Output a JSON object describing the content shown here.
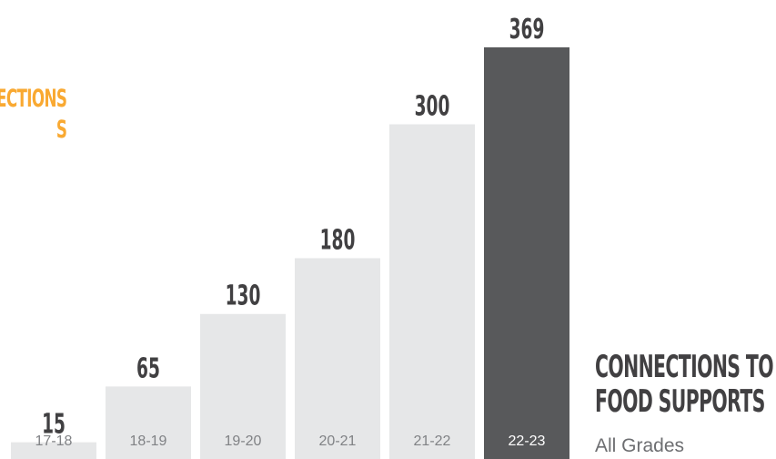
{
  "header": {
    "cut_title_line1": "ECTIONS",
    "cut_title_line2": "S"
  },
  "footer_title": {
    "line1": "CONNECTIONS TO",
    "line2": "FOOD SUPPORTS",
    "subtitle": "All Grades"
  },
  "colors": {
    "bar": "#e6e7e8",
    "bar_highlight": "#58595b",
    "value_label": "#414042",
    "category_label": "#808285",
    "category_label_highlight": "#ffffff",
    "accent": "#f9a932",
    "title": "#414042",
    "subtitle": "#6d6e71"
  },
  "chart_data": {
    "type": "bar",
    "title": "CONNECTIONS TO FOOD SUPPORTS",
    "subtitle": "All Grades",
    "categories": [
      "17-18",
      "18-19",
      "19-20",
      "20-21",
      "21-22",
      "22-23"
    ],
    "values": [
      15,
      65,
      130,
      180,
      300,
      369
    ],
    "highlight_index": 5,
    "ylim": [
      0,
      369
    ],
    "grid": false,
    "legend": "none"
  }
}
